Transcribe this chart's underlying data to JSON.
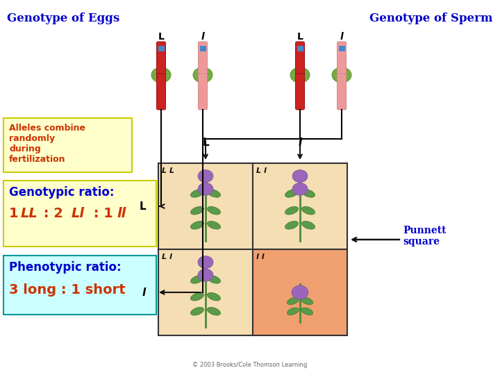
{
  "bg_color": "#ffffff",
  "title_eggs": "Genotype of Eggs",
  "title_sperm": "Genotype of Sperm",
  "title_color": "#0000cc",
  "title_fontsize": 12,
  "alleles_box_text": "Alleles combine\nrandomly\nduring\nfertilization",
  "alleles_box_bg": "#ffffcc",
  "alleles_box_edge": "#cccc00",
  "alleles_box_color": "#cc3300",
  "genotypic_label": "Genotypic ratio:",
  "genotypic_box_bg": "#ffffcc",
  "genotypic_box_edge": "#cccc00",
  "genotypic_label_color": "#0000cc",
  "genotypic_ratio_color": "#cc3300",
  "phenotypic_label": "Phenotypic ratio:",
  "phenotypic_ratio": "3 long : 1 short",
  "phenotypic_box_bg": "#ccffff",
  "phenotypic_box_edge": "#009999",
  "phenotypic_label_color": "#0000cc",
  "phenotypic_ratio_color": "#cc3300",
  "punnett_label": "Punnett\nsquare",
  "punnett_label_color": "#0000cc",
  "cell_colors_top": "#f5deb3",
  "cell_color_bl": "#f5deb3",
  "cell_color_br": "#f0a070",
  "copyright": "© 2003 Brooks/Cole Thomson Learning",
  "chrom_labels": [
    "L",
    "l",
    "L",
    "l"
  ],
  "row_labels": [
    "L",
    "l"
  ],
  "col_labels": [
    "L",
    "l"
  ],
  "cell_genotypes": [
    "L L",
    "L l",
    "L l",
    "l l"
  ]
}
